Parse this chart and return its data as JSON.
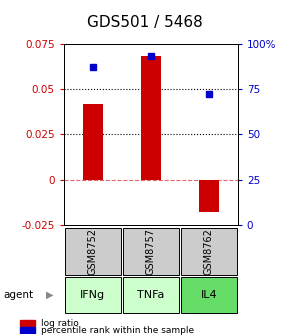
{
  "title": "GDS501 / 5468",
  "samples": [
    "GSM8752",
    "GSM8757",
    "GSM8762"
  ],
  "agents": [
    "IFNg",
    "TNFa",
    "IL4"
  ],
  "log_ratios": [
    0.042,
    0.068,
    -0.018
  ],
  "percentiles": [
    87,
    93,
    72
  ],
  "ylim_left": [
    -0.025,
    0.075
  ],
  "ylim_right": [
    0,
    100
  ],
  "yticks_left": [
    -0.025,
    0,
    0.025,
    0.05,
    0.075
  ],
  "yticks_right": [
    0,
    25,
    50,
    75,
    100
  ],
  "ytick_labels_left": [
    "-0.025",
    "0",
    "0.025",
    "0.05",
    "0.075"
  ],
  "ytick_labels_right": [
    "0",
    "25",
    "50",
    "75",
    "100%"
  ],
  "hlines_dotted": [
    0.025,
    0.05
  ],
  "hline_dashed": 0.0,
  "bar_color": "#cc0000",
  "dot_color": "#0000cc",
  "sample_box_color": "#cccccc",
  "agent_colors": [
    "#ccffcc",
    "#ccffcc",
    "#66dd66"
  ],
  "title_fontsize": 11,
  "tick_fontsize": 7.5,
  "bar_width": 0.35,
  "legend_fontsize": 6.5
}
